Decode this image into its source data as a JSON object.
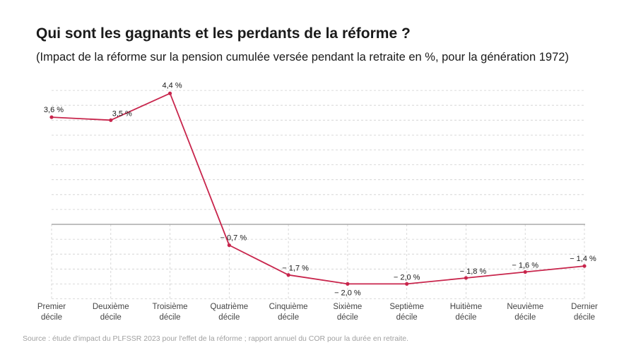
{
  "header": {
    "title": "Qui sont les gagnants et les perdants de la réforme ?",
    "subtitle": "(Impact de la réforme sur la pension cumulée versée pendant la retraite en %, pour la génération 1972)"
  },
  "footer": {
    "source": "Source : étude d'impact du PLFSSR 2023 pour l'effet de la réforme ; rapport annuel du COR pour la durée en retraite."
  },
  "colors": {
    "line": "#c8254c",
    "grid": "#cfcfcf",
    "axis": "#999999",
    "text": "#1a1a1a"
  },
  "chart_data": {
    "type": "line",
    "title": "Qui sont les gagnants et les perdants de la réforme ?",
    "subtitle": "(Impact de la réforme sur la pension cumulée versée pendant la retraite en %, pour la génération 1972)",
    "xlabel": "",
    "ylabel": "",
    "grid": true,
    "legend": "none",
    "ylim": [
      -2.5,
      4.5
    ],
    "categories": [
      [
        "Premier",
        "décile"
      ],
      [
        "Deuxième",
        "décile"
      ],
      [
        "Troisième",
        "décile"
      ],
      [
        "Quatrième",
        "décile"
      ],
      [
        "Cinquième",
        "décile"
      ],
      [
        "Sixième",
        "décile"
      ],
      [
        "Septième",
        "décile"
      ],
      [
        "Huitième",
        "décile"
      ],
      [
        "Neuvième",
        "décile"
      ],
      [
        "Dernier",
        "décile"
      ]
    ],
    "series": [
      {
        "values": [
          3.6,
          3.5,
          4.4,
          -0.7,
          -1.7,
          -2.0,
          -2.0,
          -1.8,
          -1.6,
          -1.4
        ],
        "labels": [
          "3,6 %",
          "3,5 %",
          "4,4 %",
          "− 0,7 %",
          "− 1,7 %",
          "− 2,0 %",
          "− 2,0 %",
          "− 1,8 %",
          "− 1,6 %",
          "− 1,4 %"
        ]
      }
    ]
  }
}
